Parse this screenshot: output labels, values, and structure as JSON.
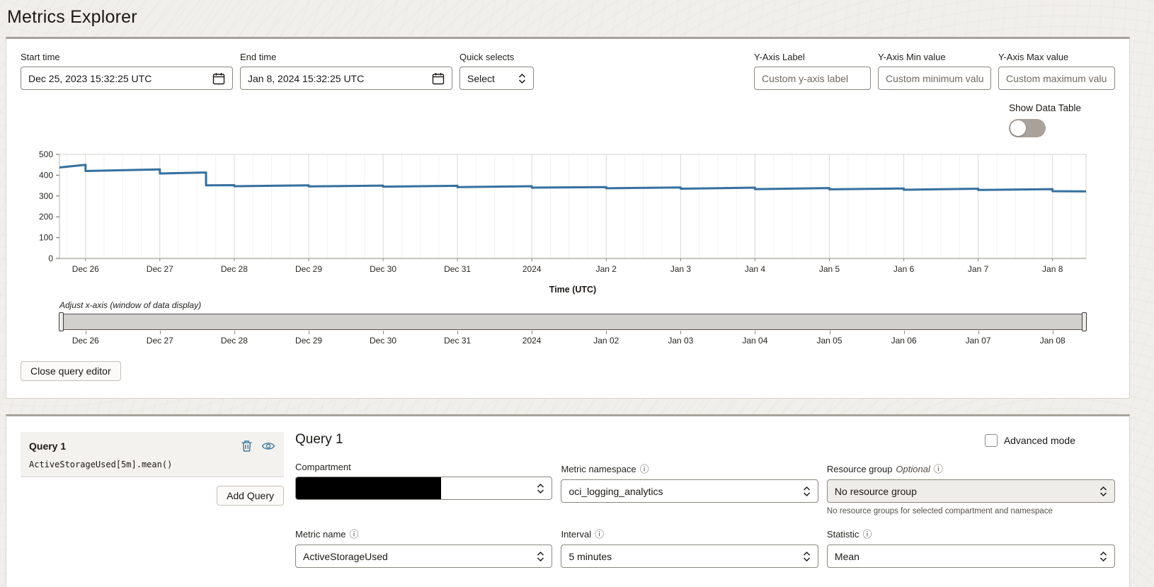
{
  "page": {
    "title": "Metrics Explorer"
  },
  "colors": {
    "line": "#36719f",
    "band": "#8fb3d3",
    "icon_blue": "#3d7a9e",
    "panel_border": "#d8d4cf",
    "panel_top_border": "#a7a29b",
    "toggle_track": "#a9a29a"
  },
  "controls": {
    "start_time": {
      "label": "Start time",
      "value": "Dec 25, 2023 15:32:25 UTC",
      "icon": "calendar-icon"
    },
    "end_time": {
      "label": "End time",
      "value": "Jan 8, 2024 15:32:25 UTC",
      "icon": "calendar-icon"
    },
    "quick_selects": {
      "label": "Quick selects",
      "value": "Select"
    },
    "y_axis_label": {
      "label": "Y-Axis Label",
      "placeholder": "Custom y-axis label"
    },
    "y_axis_min": {
      "label": "Y-Axis Min value",
      "placeholder": "Custom minimum value"
    },
    "y_axis_max": {
      "label": "Y-Axis Max value",
      "placeholder": "Custom maximum value"
    },
    "show_data_table": {
      "label": "Show Data Table",
      "state": "off"
    }
  },
  "chart_data": {
    "type": "line",
    "title": "",
    "xlabel": "Time (UTC)",
    "ylabel": "",
    "ylim": [
      0,
      500
    ],
    "y_ticks": [
      0,
      100,
      200,
      300,
      400,
      500
    ],
    "x_domain_days": [
      0.65,
      14.45
    ],
    "grid": "vertical-daily",
    "legend": "none",
    "x_ticks": [
      {
        "d": 1,
        "label": "Dec 26"
      },
      {
        "d": 2,
        "label": "Dec 27"
      },
      {
        "d": 3,
        "label": "Dec 28"
      },
      {
        "d": 4,
        "label": "Dec 29"
      },
      {
        "d": 5,
        "label": "Dec 30"
      },
      {
        "d": 6,
        "label": "Dec 31"
      },
      {
        "d": 7,
        "label": "2024"
      },
      {
        "d": 8,
        "label": "Jan 2"
      },
      {
        "d": 9,
        "label": "Jan 3"
      },
      {
        "d": 10,
        "label": "Jan 4"
      },
      {
        "d": 11,
        "label": "Jan 5"
      },
      {
        "d": 12,
        "label": "Jan 6"
      },
      {
        "d": 13,
        "label": "Jan 7"
      },
      {
        "d": 14,
        "label": "Jan 8"
      }
    ],
    "series": [
      {
        "name": "ActiveStorageUsed[5m].mean()",
        "color": "#36719f",
        "points": [
          [
            0.65,
            437
          ],
          [
            1,
            450
          ],
          [
            1,
            420
          ],
          [
            2,
            428
          ],
          [
            2,
            408
          ],
          [
            2.62,
            413
          ],
          [
            2.62,
            351
          ],
          [
            3,
            352
          ],
          [
            3,
            347
          ],
          [
            4,
            351
          ],
          [
            4,
            346
          ],
          [
            5,
            350
          ],
          [
            5,
            345
          ],
          [
            6,
            349
          ],
          [
            6,
            343
          ],
          [
            7,
            347
          ],
          [
            7,
            340
          ],
          [
            8,
            343
          ],
          [
            8,
            337
          ],
          [
            9,
            341
          ],
          [
            9,
            335
          ],
          [
            10,
            340
          ],
          [
            10,
            333
          ],
          [
            11,
            338
          ],
          [
            11,
            332
          ],
          [
            12,
            336
          ],
          [
            12,
            330
          ],
          [
            13,
            335
          ],
          [
            13,
            329
          ],
          [
            14,
            333
          ],
          [
            14,
            323
          ],
          [
            14.45,
            322
          ]
        ]
      }
    ],
    "slider": {
      "label": "Adjust x-axis (window of data display)",
      "tick_labels": [
        "Dec 26",
        "Dec 27",
        "Dec 28",
        "Dec 29",
        "Dec 30",
        "Dec 31",
        "2024",
        "Jan 02",
        "Jan 03",
        "Jan 04",
        "Jan 05",
        "Jan 06",
        "Jan 07",
        "Jan 08"
      ]
    }
  },
  "query_editor": {
    "close_button": "Close query editor",
    "add_query_button": "Add Query",
    "queries": [
      {
        "name": "Query 1",
        "expression": "ActiveStorageUsed[5m].mean()"
      }
    ],
    "detail": {
      "heading": "Query 1",
      "advanced_mode_label": "Advanced mode",
      "advanced_mode_checked": false,
      "compartment": {
        "label": "Compartment",
        "value": "",
        "redacted": true
      },
      "metric_namespace": {
        "label": "Metric namespace",
        "value": "oci_logging_analytics"
      },
      "resource_group": {
        "label": "Resource group",
        "optional": "Optional",
        "value": "No resource group",
        "disabled": true,
        "helper": "No resource groups for selected compartment and namespace"
      },
      "metric_name": {
        "label": "Metric name",
        "value": "ActiveStorageUsed"
      },
      "interval": {
        "label": "Interval",
        "value": "5 minutes"
      },
      "statistic": {
        "label": "Statistic",
        "value": "Mean"
      }
    }
  }
}
